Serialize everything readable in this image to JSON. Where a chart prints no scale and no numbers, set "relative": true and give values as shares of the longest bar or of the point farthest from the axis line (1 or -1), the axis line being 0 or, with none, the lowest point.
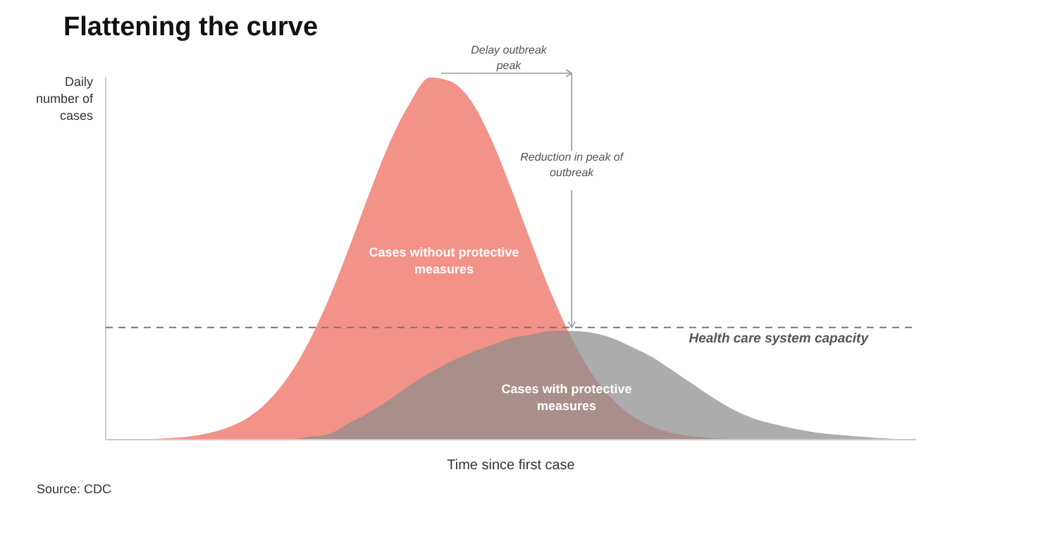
{
  "chart_data": {
    "type": "area",
    "title": "Flattening the curve",
    "xlabel": "Time since first case",
    "ylabel": "Daily number of cases",
    "relative": true,
    "categories": [
      null,
      null,
      null,
      null,
      null,
      null,
      null,
      null,
      null,
      null,
      null,
      null,
      null,
      null,
      null,
      null,
      null,
      null,
      null,
      null,
      null,
      null,
      null,
      null,
      null,
      null,
      null,
      null,
      null,
      null,
      null,
      null,
      null,
      null,
      null,
      null,
      null,
      null,
      null,
      null,
      null
    ],
    "series": [
      {
        "name": "Cases without protective measures",
        "color": "#f2897e",
        "values": [
          0,
          0.001,
          0.001,
          0.004,
          0.008,
          0.017,
          0.033,
          0.06,
          0.105,
          0.173,
          0.267,
          0.387,
          0.528,
          0.678,
          0.818,
          0.928,
          1,
          0.99,
          0.938,
          0.833,
          0.695,
          0.545,
          0.402,
          0.28,
          0.182,
          0.112,
          0.065,
          0.035,
          0.018,
          0.009,
          0.004,
          0.002,
          0,
          0,
          0,
          0,
          0,
          0,
          0,
          0,
          0
        ]
      },
      {
        "name": "Cases with protective measures",
        "color": "#8c8c8c",
        "values": [
          0,
          0,
          0,
          0,
          0,
          0,
          0,
          0,
          0,
          0,
          0.008,
          0.015,
          0.045,
          0.075,
          0.11,
          0.15,
          0.185,
          0.215,
          0.24,
          0.26,
          0.28,
          0.29,
          0.3,
          0.3,
          0.295,
          0.28,
          0.255,
          0.227,
          0.19,
          0.152,
          0.115,
          0.082,
          0.058,
          0.043,
          0.03,
          0.02,
          0.014,
          0.009,
          0.005,
          0.002,
          0
        ]
      }
    ],
    "ref_lines": [
      {
        "axis": "y",
        "value": 0.31,
        "label": "Health care system capacity",
        "color": "#777777",
        "line_style": "dashed"
      }
    ],
    "annotations": [
      "Delay outbreak peak",
      "Reduction in peak of outbreak",
      "Source: CDC"
    ]
  }
}
